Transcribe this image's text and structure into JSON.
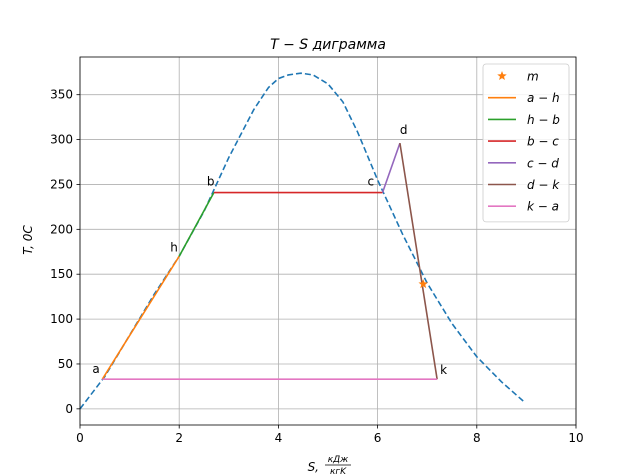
{
  "chart_data": {
    "type": "line",
    "title": "T − S диграмма",
    "xlabel": "S,",
    "xlabel_unit_num": "кДж",
    "xlabel_unit_den": "кгK",
    "ylabel": "T,",
    "ylabel_unit": "0C",
    "xlim": [
      0,
      10
    ],
    "ylim": [
      -18,
      392
    ],
    "xticks": [
      0,
      2,
      4,
      6,
      8,
      10
    ],
    "yticks": [
      0,
      50,
      100,
      150,
      200,
      250,
      300,
      350
    ],
    "grid": true,
    "legend_position": "top-right",
    "saturation_curve": {
      "color": "#1f77b4",
      "style": "dashed",
      "x": [
        0,
        0.5,
        1.0,
        1.5,
        2.0,
        2.5,
        3.0,
        3.5,
        3.8,
        4.0,
        4.2,
        4.45,
        4.7,
        5.0,
        5.3,
        5.6,
        6.0,
        6.5,
        7.0,
        7.5,
        8.0,
        8.5,
        8.95
      ],
      "y": [
        0,
        36,
        82,
        128,
        170,
        220,
        280,
        333,
        358,
        368,
        372,
        374,
        372,
        362,
        342,
        308,
        255,
        195,
        140,
        95,
        58,
        30,
        8
      ]
    },
    "series": [
      {
        "name": "a − h",
        "color": "#ff7f0e",
        "x": [
          0.45,
          2.0
        ],
        "y": [
          33,
          170
        ]
      },
      {
        "name": "h − b",
        "color": "#2ca02c",
        "x": [
          2.0,
          2.7
        ],
        "y": [
          170,
          241
        ]
      },
      {
        "name": "b − c",
        "color": "#d62728",
        "x": [
          2.7,
          6.1
        ],
        "y": [
          241,
          241
        ]
      },
      {
        "name": "c − d",
        "color": "#9467bd",
        "x": [
          6.1,
          6.45
        ],
        "y": [
          241,
          296
        ]
      },
      {
        "name": "d − k",
        "color": "#8c564b",
        "x": [
          6.45,
          7.2
        ],
        "y": [
          296,
          33
        ]
      },
      {
        "name": "k − a",
        "color": "#e377c2",
        "x": [
          7.2,
          0.45
        ],
        "y": [
          33,
          33
        ]
      }
    ],
    "marker": {
      "name": "m",
      "color": "#ff7f0e",
      "x": 6.92,
      "y": 139
    },
    "point_labels": [
      {
        "text": "a",
        "x": 0.45,
        "y": 33
      },
      {
        "text": "h",
        "x": 2.0,
        "y": 170
      },
      {
        "text": "b",
        "x": 2.7,
        "y": 241
      },
      {
        "text": "c",
        "x": 6.1,
        "y": 241
      },
      {
        "text": "d",
        "x": 6.45,
        "y": 296
      },
      {
        "text": "k",
        "x": 7.2,
        "y": 33
      }
    ]
  }
}
